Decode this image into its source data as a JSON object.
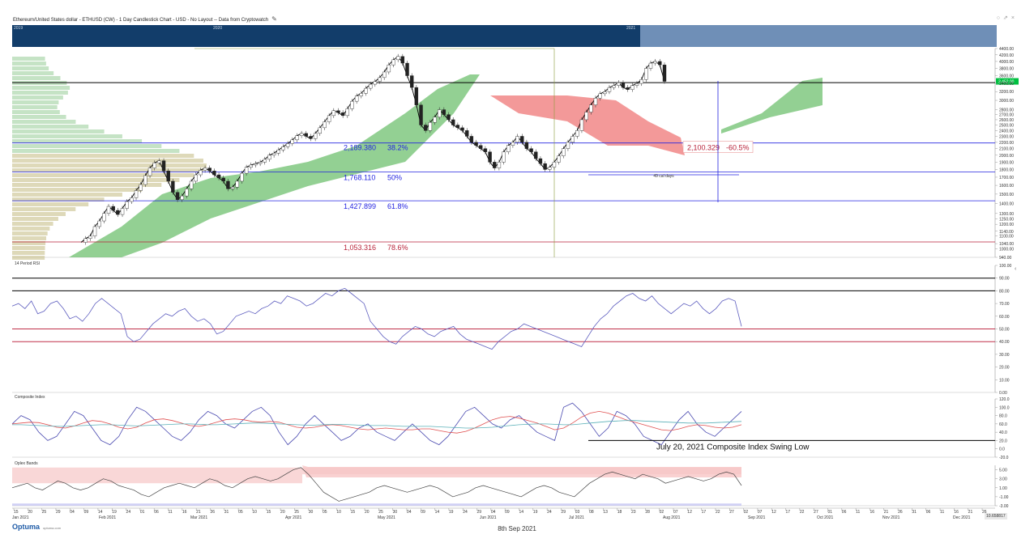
{
  "window_title": "Ethereum/United States dollar - ETHUSD (CW) - 1 Day Candlestick Chart - USD - No Layout -- Data from Cryptowatch",
  "navigator_years": [
    "2019",
    "2020",
    "2021"
  ],
  "footer": {
    "brand": "Optuma",
    "url": "optuma.com",
    "date": "8th Sep 2021",
    "end_badge": "10.658817"
  },
  "colors": {
    "fib_blue": "#2424e0",
    "fib_red": "#b8233a",
    "price_line": "#000000",
    "ichimoku_green": "#6fc06f",
    "ichimoku_red": "#f08080",
    "nav_bar": "#123d6a",
    "rsi_line": "#5d5dbf",
    "price_badge": "#00c040"
  },
  "chart_data": [
    {
      "type": "candlestick",
      "panel": "price",
      "title": "",
      "ylim": [
        940,
        4400
      ],
      "yscale": "log",
      "y_ticks": [
        "4400.00",
        "4200.00",
        "4000.00",
        "3800.00",
        "3600.00",
        "3400.00",
        "3200.00",
        "3000.00",
        "2800.00",
        "2700.00",
        "2600.00",
        "2500.00",
        "2400.00",
        "2300.00",
        "2200.00",
        "2100.00",
        "2000.00",
        "1900.00",
        "1800.00",
        "1700.00",
        "1600.00",
        "1500.00",
        "1400.00",
        "1300.00",
        "1250.00",
        "1200.00",
        "1140.00",
        "1100.00",
        "1040.00",
        "1000.00",
        "940.00"
      ],
      "current_price": 3452,
      "current_price_label": "3,452.00",
      "horizontal_level": 3420,
      "fib_levels": [
        {
          "price": 2189.38,
          "label": "2,189.380",
          "pct": "38.2%"
        },
        {
          "price": 1768.11,
          "label": "1,768.110",
          "pct": "50%"
        },
        {
          "price": 1427.899,
          "label": "1,427.899",
          "pct": "61.8%"
        },
        {
          "price": 1053.316,
          "label": "1,053.316",
          "pct": "78.6%"
        }
      ],
      "annotation_box": {
        "price": 2100.329,
        "label": "2,100.329",
        "pct": "-60.5%"
      },
      "cal_days_label": "49 cal days",
      "close_series": [
        1050,
        1080,
        1100,
        1180,
        1230,
        1300,
        1370,
        1330,
        1290,
        1350,
        1420,
        1460,
        1540,
        1610,
        1720,
        1820,
        1890,
        1920,
        1780,
        1650,
        1520,
        1440,
        1480,
        1560,
        1650,
        1730,
        1790,
        1820,
        1780,
        1730,
        1690,
        1650,
        1560,
        1580,
        1650,
        1750,
        1830,
        1860,
        1880,
        1900,
        1940,
        2000,
        2030,
        2080,
        2130,
        2180,
        2240,
        2310,
        2350,
        2300,
        2260,
        2350,
        2450,
        2560,
        2680,
        2780,
        2740,
        2680,
        2820,
        2980,
        3100,
        3160,
        3280,
        3380,
        3450,
        3550,
        3700,
        3900,
        4050,
        4150,
        3950,
        3600,
        3300,
        2900,
        2500,
        2400,
        2550,
        2650,
        2800,
        2700,
        2600,
        2500,
        2450,
        2400,
        2300,
        2200,
        2150,
        2100,
        2050,
        1900,
        1820,
        1900,
        2050,
        2150,
        2200,
        2300,
        2200,
        2100,
        2050,
        1950,
        1880,
        1800,
        1830,
        1900,
        1990,
        2100,
        2200,
        2300,
        2400,
        2600,
        2750,
        2900,
        3050,
        3150,
        3200,
        3300,
        3350,
        3420,
        3300,
        3250,
        3350,
        3400,
        3500,
        3800,
        3950,
        4000,
        3900,
        3452
      ],
      "ichimoku_cloud": "green and red kumo",
      "volume_profile": "left side horizontal histogram"
    },
    {
      "type": "line",
      "panel": "rsi",
      "title": "14 Period RSI",
      "ylim": [
        0,
        100
      ],
      "y_ticks": [
        "100.00",
        "90.00",
        "80.00",
        "70.00",
        "60.00",
        "50.00",
        "40.00",
        "30.00",
        "20.00",
        "10.00",
        "0.00"
      ],
      "levels": [
        90,
        80,
        50,
        40
      ],
      "values": [
        68,
        70,
        66,
        72,
        62,
        64,
        70,
        72,
        66,
        58,
        60,
        56,
        62,
        70,
        74,
        70,
        66,
        62,
        44,
        40,
        42,
        48,
        54,
        58,
        62,
        60,
        64,
        66,
        60,
        56,
        58,
        54,
        46,
        48,
        54,
        60,
        62,
        64,
        62,
        66,
        68,
        72,
        70,
        76,
        74,
        72,
        68,
        70,
        74,
        78,
        76,
        80,
        82,
        78,
        74,
        70,
        56,
        50,
        44,
        40,
        38,
        44,
        48,
        52,
        50,
        46,
        44,
        48,
        50,
        52,
        46,
        42,
        40,
        38,
        36,
        34,
        40,
        44,
        48,
        50,
        54,
        52,
        50,
        48,
        46,
        44,
        42,
        40,
        38,
        36,
        44,
        52,
        58,
        62,
        68,
        72,
        76,
        78,
        74,
        72,
        76,
        70,
        66,
        62,
        66,
        70,
        68,
        72,
        66,
        62,
        66,
        72,
        74,
        72,
        52
      ]
    },
    {
      "type": "line",
      "panel": "composite",
      "title": "Composite Index",
      "ylim": [
        -20,
        120
      ],
      "y_ticks": [
        "120.0",
        "100.0",
        "80.0",
        "60.0",
        "40.0",
        "20.0",
        "0.0",
        "-20.0"
      ],
      "swing_low_value": 20,
      "annotation": "July 20, 2021 Composite Index Swing Low",
      "series": [
        {
          "values": [
            60,
            80,
            70,
            40,
            20,
            30,
            60,
            90,
            80,
            50,
            20,
            10,
            30,
            70,
            100,
            90,
            70,
            50,
            30,
            20,
            40,
            70,
            90,
            80,
            60,
            50,
            70,
            90,
            100,
            80,
            40,
            10,
            30,
            60,
            80,
            60,
            40,
            20,
            30,
            50,
            60,
            40,
            30,
            20,
            40,
            60,
            40,
            20,
            10,
            30,
            60,
            90,
            100,
            80,
            60,
            50,
            70,
            80,
            60,
            40,
            30,
            20,
            100,
            110,
            90,
            60,
            30,
            50,
            90,
            80,
            60,
            30,
            20,
            10,
            40,
            70,
            90,
            60,
            40,
            30,
            50,
            70,
            90
          ]
        },
        {
          "values": [
            60,
            62,
            64,
            63,
            58,
            52,
            50,
            55,
            62,
            68,
            66,
            60,
            52,
            48,
            52,
            62,
            70,
            72,
            68,
            62,
            56,
            54,
            58,
            64,
            70,
            72,
            70,
            66,
            64,
            66,
            64,
            58,
            52,
            50,
            52,
            56,
            58,
            56,
            52,
            48,
            46,
            48,
            50,
            48,
            46,
            46,
            48,
            48,
            44,
            40,
            38,
            42,
            50,
            60,
            70,
            76,
            78,
            74,
            68,
            62,
            54,
            46,
            50,
            62,
            76,
            86,
            90,
            86,
            78,
            70,
            64,
            58,
            52,
            46,
            44,
            48,
            54,
            58,
            56,
            52,
            50,
            52,
            58
          ]
        },
        {
          "values": [
            58,
            58,
            57,
            56,
            55,
            54,
            54,
            55,
            56,
            57,
            58,
            58,
            57,
            56,
            55,
            56,
            57,
            58,
            59,
            60,
            60,
            59,
            58,
            58,
            59,
            60,
            61,
            62,
            62,
            61,
            60,
            59,
            58,
            57,
            57,
            58,
            59,
            59,
            58,
            57,
            56,
            56,
            56,
            55,
            54,
            54,
            54,
            54,
            53,
            52,
            51,
            50,
            50,
            51,
            52,
            54,
            56,
            58,
            59,
            60,
            60,
            59,
            58,
            58,
            60,
            62,
            64,
            66,
            67,
            68,
            68,
            67,
            66,
            65,
            64,
            63,
            62,
            62,
            62,
            63,
            64,
            65,
            66
          ]
        }
      ]
    },
    {
      "type": "line",
      "panel": "oplex",
      "title": "Oplex Bands",
      "ylim": [
        -3,
        6
      ],
      "y_ticks": [
        "5.00",
        "3.00",
        "1.00",
        "-1.00",
        "-3.00"
      ],
      "values": [
        1,
        1.5,
        2,
        1,
        0.5,
        1.5,
        2.5,
        2,
        1,
        0.5,
        1,
        2,
        3,
        2.5,
        1.5,
        1,
        0.5,
        -0.5,
        -1,
        0,
        1,
        1.5,
        2,
        1.5,
        1,
        2,
        3,
        2.5,
        1.5,
        1,
        2,
        3,
        3.5,
        3,
        2.5,
        3,
        4,
        5,
        5.5,
        4,
        2,
        0,
        -1,
        -2,
        -1.5,
        -1,
        -0.5,
        0,
        1,
        1.5,
        1,
        0.5,
        0,
        0.5,
        1,
        1.5,
        1,
        0,
        -1,
        -0.5,
        0,
        1,
        1.5,
        1,
        0.5,
        0,
        -0.5,
        -1,
        0,
        1,
        1.5,
        1,
        0,
        -0.5,
        -1,
        0.5,
        2,
        3,
        4,
        4.5,
        4,
        3.5,
        3,
        4,
        3.5,
        3,
        2,
        2.5,
        3,
        3.5,
        3,
        2.5,
        3,
        4,
        4.5,
        4,
        1.5
      ]
    }
  ],
  "x_axis": {
    "ticks": [
      "15",
      "20",
      "25",
      "29",
      "04",
      "09",
      "14",
      "19",
      "24",
      "01",
      "06",
      "11",
      "16",
      "21",
      "26",
      "31",
      "05",
      "10",
      "15",
      "20",
      "25",
      "30",
      "05",
      "10",
      "15",
      "20",
      "25",
      "30",
      "04",
      "09",
      "14",
      "19",
      "24",
      "29",
      "04",
      "09",
      "14",
      "19",
      "24",
      "29",
      "03",
      "08",
      "13",
      "18",
      "23",
      "28",
      "02",
      "07",
      "12",
      "17",
      "22",
      "27",
      "02",
      "07",
      "12",
      "17",
      "22",
      "27",
      "01",
      "06",
      "11",
      "16",
      "21",
      "26",
      "31",
      "06",
      "11",
      "16",
      "21",
      "26"
    ],
    "months": [
      {
        "label": "Jan 2021"
      },
      {
        "label": "Feb 2021"
      },
      {
        "label": "Mar 2021"
      },
      {
        "label": "Apr 2021"
      },
      {
        "label": "May 2021"
      },
      {
        "label": "Jun 2021"
      },
      {
        "label": "Jul 2021"
      },
      {
        "label": "Aug 2021"
      },
      {
        "label": "Sep 2021"
      },
      {
        "label": "Oct 2021"
      },
      {
        "label": "Nov 2021"
      },
      {
        "label": "Dec 2021"
      }
    ]
  }
}
